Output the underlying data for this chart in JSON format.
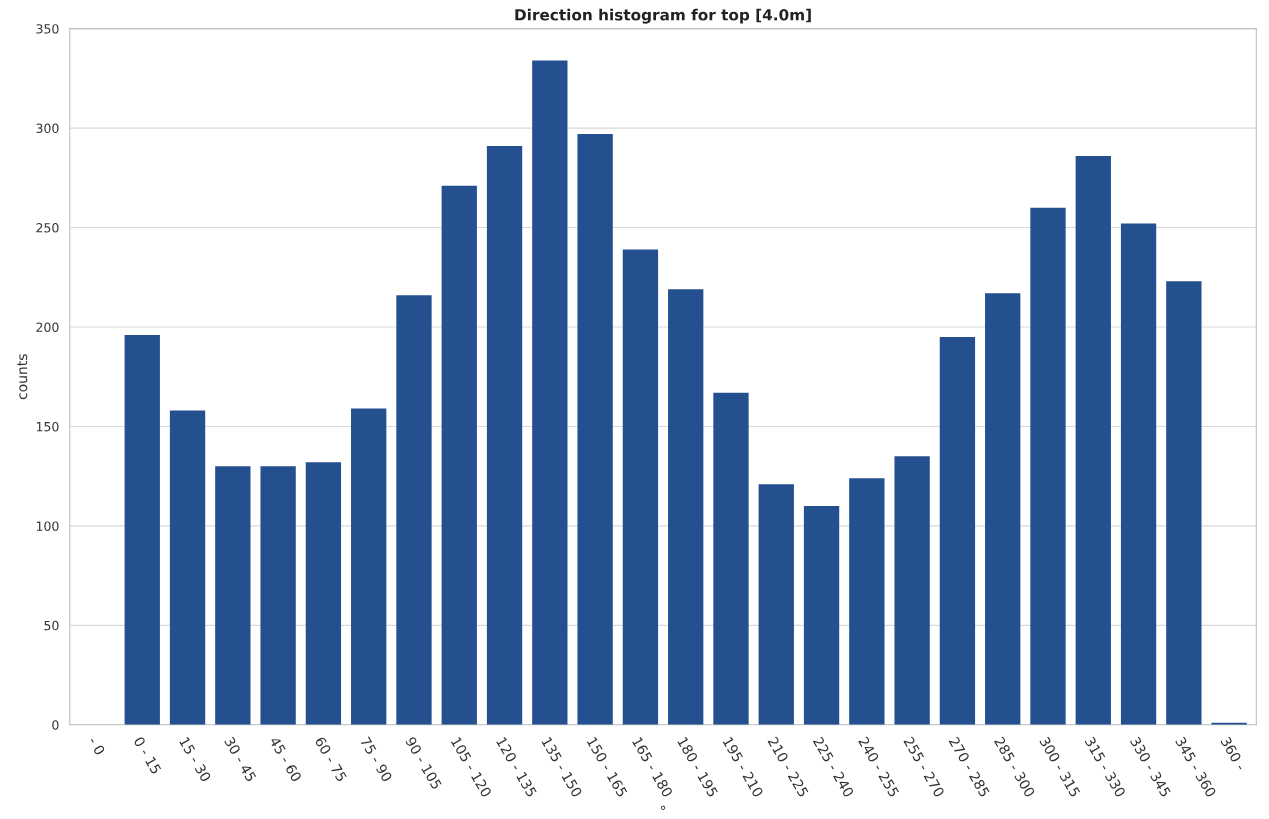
{
  "chart_data": {
    "type": "bar",
    "title": "Direction histogram for top [4.0m]",
    "xlabel": "°",
    "ylabel": "counts",
    "categories": [
      "- 0",
      "0 - 15",
      "15 - 30",
      "30 - 45",
      "45 - 60",
      "60 - 75",
      "75 - 90",
      "90 - 105",
      "105 - 120",
      "120 - 135",
      "135 - 150",
      "150 - 165",
      "165 - 180",
      "180 - 195",
      "195 - 210",
      "210 - 225",
      "225 - 240",
      "240 - 255",
      "255 - 270",
      "270 - 285",
      "285 - 300",
      "300 - 315",
      "315 - 330",
      "330 - 345",
      "345 - 360",
      "360 -"
    ],
    "values": [
      0,
      196,
      158,
      130,
      130,
      132,
      159,
      216,
      271,
      291,
      334,
      297,
      239,
      219,
      167,
      121,
      110,
      124,
      135,
      195,
      217,
      260,
      286,
      252,
      223,
      1
    ],
    "color": "#24508f",
    "ylim": [
      0,
      350
    ],
    "yticks": [
      0,
      50,
      100,
      150,
      200,
      250,
      300,
      350
    ],
    "grid": "y",
    "legend": false
  }
}
